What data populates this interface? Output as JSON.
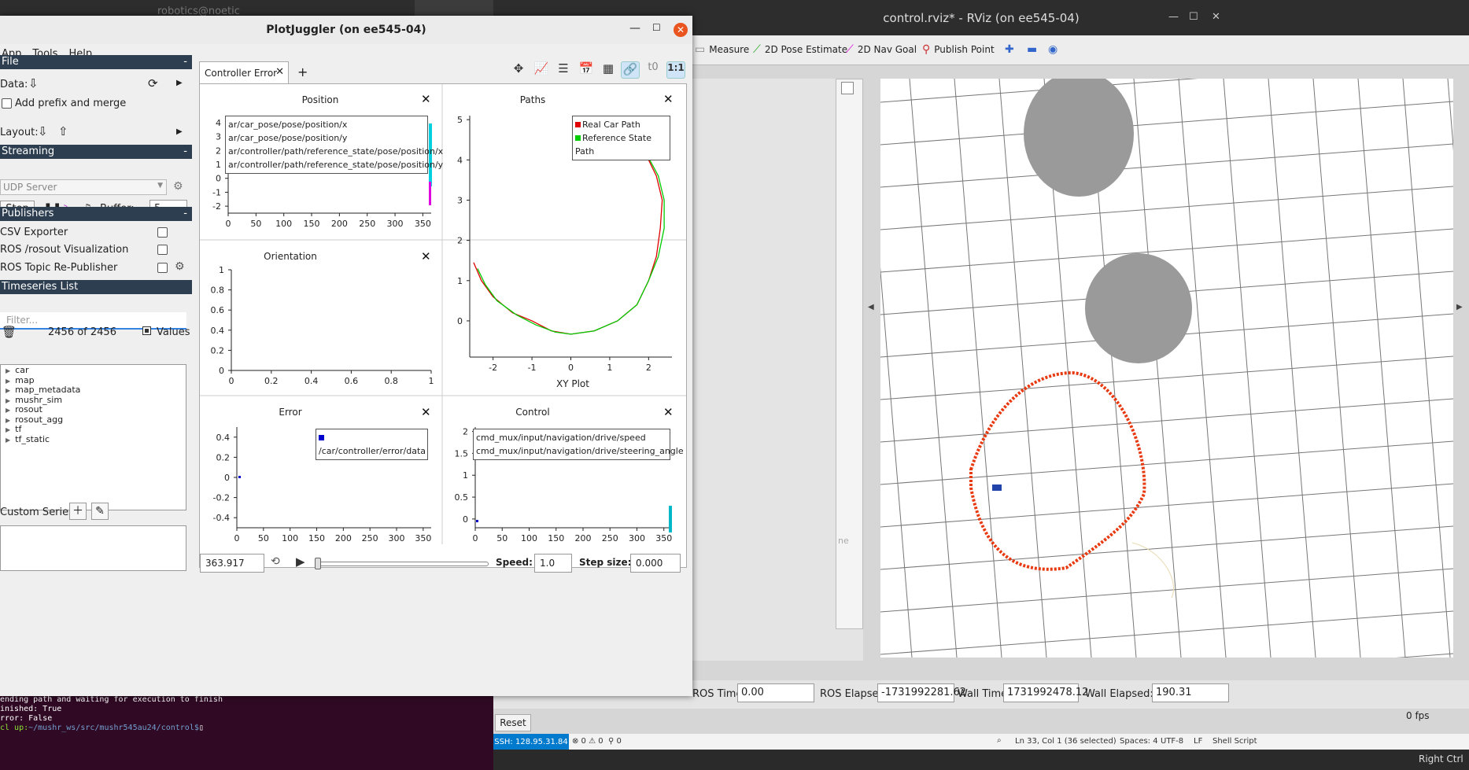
{
  "rviz": {
    "title": "control.rviz* - RViz (on ee545-04)",
    "toolbar": [
      {
        "label": "Measure",
        "icon": "ruler-icon"
      },
      {
        "label": "2D Pose Estimate",
        "icon": "green-arrow-icon"
      },
      {
        "label": "2D Nav Goal",
        "icon": "magenta-arrow-icon"
      },
      {
        "label": "Publish Point",
        "icon": "pin-icon"
      }
    ],
    "time": {
      "ros_time_label": "ROS Time:",
      "ros_time": "0.00",
      "ros_elapsed_label": "ROS Elapsed:",
      "ros_elapsed": "-1731992281.62",
      "wall_time_label": "Wall Time:",
      "wall_time": "1731992478.12",
      "wall_elapsed_label": "Wall Elapsed:",
      "wall_elapsed": "190.31"
    },
    "reset_label": "Reset",
    "fps": "0 fps",
    "faint_field": "ne"
  },
  "status": {
    "ssh": "SSH: 128.95.31.84",
    "problems": "⊗ 0 ⚠ 0",
    "ports": "⚲ 0",
    "position": "Ln 33, Col 1 (36 selected)",
    "spaces": "Spaces: 4",
    "encoding": "UTF-8",
    "eol": "LF",
    "language": "Shell Script",
    "taskbar_right": "Right Ctrl"
  },
  "terminal": {
    "lines": [
      "ending path and waiting for execution to finish",
      "inished: True",
      "rror: False"
    ],
    "prompt_user": "cl up:",
    "prompt_path": "~/mushr_ws/src/mushr545au24/control$"
  },
  "topleft_title": "robotics@noetic",
  "pj": {
    "title": "PlotJuggler (on ee545-04)",
    "menu": [
      "App",
      "Tools",
      "Help"
    ],
    "file_header": "File",
    "data_label": "Data:",
    "add_prefix": "Add prefix and merge",
    "layout_label": "Layout:",
    "streaming_header": "Streaming",
    "udp": "UDP Server",
    "stop": "Stop",
    "buffer_label": "Buffer:",
    "buffer_value": "5",
    "publishers_header": "Publishers",
    "publishers": [
      "CSV Exporter",
      "ROS /rosout Visualization",
      "ROS Topic Re-Publisher"
    ],
    "timeseries_header": "Timeseries List",
    "filter_placeholder": "Filter...",
    "count": "2456 of 2456",
    "values_label": "Values",
    "tree": [
      "car",
      "map",
      "map_metadata",
      "mushr_sim",
      "rosout",
      "rosout_agg",
      "tf",
      "tf_static"
    ],
    "custom_series": "Custom Series:",
    "tab_label": "Controller Error",
    "toolbar_icons": [
      "move-icon",
      "plot-icon",
      "list-icon",
      "calendar-icon",
      "grid-icon",
      "link-icon",
      "t0-icon",
      "ratio-icon"
    ],
    "ratio_label": "1:1",
    "t0_label": "t0",
    "time_value": "363.917",
    "speed_label": "Speed:",
    "speed_value": "1.0",
    "step_label": "Step size:",
    "step_value": "0.000"
  },
  "plots": {
    "position": {
      "title": "Position",
      "legend": [
        "ar/car_pose/pose/position/x",
        "ar/car_pose/pose/position/y",
        "ar/controller/path/reference_state/pose/position/x",
        "ar/controller/path/reference_state/pose/position/y"
      ]
    },
    "paths": {
      "title": "Paths",
      "xlabel": "XY Plot",
      "legend": [
        "Real Car Path",
        "Reference State Path"
      ]
    },
    "orientation": {
      "title": "Orientation"
    },
    "error": {
      "title": "Error",
      "legend": [
        "/car/controller/error/data"
      ]
    },
    "control": {
      "title": "Control",
      "legend": [
        "cmd_mux/input/navigation/drive/speed",
        "cmd_mux/input/navigation/drive/steering_angle"
      ]
    }
  },
  "chart_data": [
    {
      "type": "line",
      "title": "Position",
      "x_ticks": [
        "0",
        "50",
        "100",
        "150",
        "200",
        "250",
        "300",
        "350"
      ],
      "y_ticks": [
        "4",
        "3",
        "2",
        "1",
        "0",
        "-1",
        "-2"
      ],
      "xlim": [
        0,
        365
      ],
      "ylim": [
        -2.5,
        4.5
      ]
    },
    {
      "type": "line",
      "title": "Paths",
      "xlabel": "XY Plot",
      "x_ticks": [
        "-2",
        "-1",
        "0",
        "1",
        "2"
      ],
      "y_ticks": [
        "5",
        "4",
        "3",
        "2",
        "1",
        "0"
      ],
      "xlim": [
        -2.6,
        2.6
      ],
      "ylim": [
        -0.9,
        5.1
      ],
      "series": [
        {
          "name": "Real Car Path",
          "color": "#e00000",
          "x": [
            -2.5,
            -2.3,
            -2.0,
            -1.5,
            -1.0,
            -0.5,
            0,
            0.6,
            1.2,
            1.7,
            2.0,
            2.2,
            2.3,
            2.35,
            2.2,
            2.0,
            1.7,
            1.4,
            1.1
          ],
          "y": [
            1.45,
            1.0,
            0.6,
            0.2,
            0.0,
            -0.25,
            -0.33,
            -0.25,
            0.0,
            0.4,
            1.0,
            1.6,
            2.3,
            3.0,
            3.6,
            4.0,
            4.3,
            4.4,
            4.35
          ]
        },
        {
          "name": "Reference State Path",
          "color": "#00cc00",
          "x": [
            -2.4,
            -2.2,
            -1.9,
            -1.4,
            -0.9,
            -0.4,
            0,
            0.6,
            1.2,
            1.7,
            2.0,
            2.25,
            2.4,
            2.4,
            2.25,
            2.0,
            1.6,
            1.2,
            0.5
          ],
          "y": [
            1.3,
            0.9,
            0.5,
            0.15,
            -0.1,
            -0.28,
            -0.33,
            -0.25,
            0.0,
            0.4,
            1.0,
            1.6,
            2.3,
            3.0,
            3.6,
            4.05,
            4.35,
            4.45,
            4.5
          ]
        }
      ]
    },
    {
      "type": "line",
      "title": "Orientation",
      "x_ticks": [
        "0",
        "0.2",
        "0.4",
        "0.6",
        "0.8",
        "1"
      ],
      "y_ticks": [
        "1",
        "0.8",
        "0.6",
        "0.4",
        "0.2",
        "0"
      ],
      "xlim": [
        0,
        1
      ],
      "ylim": [
        0,
        1
      ]
    },
    {
      "type": "line",
      "title": "Error",
      "x_ticks": [
        "0",
        "50",
        "100",
        "150",
        "200",
        "250",
        "300",
        "350"
      ],
      "y_ticks": [
        "0.4",
        "0.2",
        "0",
        "-0.2",
        "-0.4"
      ],
      "xlim": [
        0,
        365
      ],
      "ylim": [
        -0.5,
        0.5
      ]
    },
    {
      "type": "line",
      "title": "Control",
      "x_ticks": [
        "0",
        "50",
        "100",
        "150",
        "200",
        "250",
        "300",
        "350"
      ],
      "y_ticks": [
        "2",
        "1.5",
        "1",
        "0.5",
        "0"
      ],
      "xlim": [
        0,
        365
      ],
      "ylim": [
        -0.2,
        2.1
      ]
    }
  ]
}
